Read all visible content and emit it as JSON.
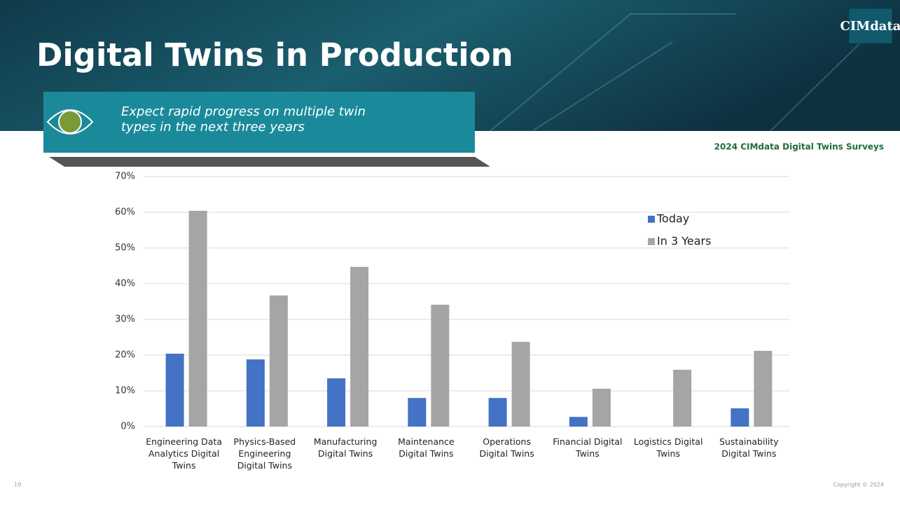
{
  "slide": {
    "title": "Digital Twins in Production",
    "subtitle": "Expect rapid progress on multiple twin types in the next three years",
    "source": "2024 CIMdata Digital Twins Surveys",
    "logo": "CIMdata",
    "page_number": "19",
    "copyright": "Copyright © 2024"
  },
  "chart_data": {
    "type": "bar",
    "categories": [
      "Engineering Data Analytics Digital Twins",
      "Physics-Based Engineering Digital Twins",
      "Manufacturing Digital Twins",
      "Maintenance Digital Twins",
      "Operations Digital Twins",
      "Financial Digital Twins",
      "Logistics Digital Twins",
      "Sustainability Digital Twins"
    ],
    "series": [
      {
        "name": "Today",
        "color": "#4472c4",
        "values": [
          20.4,
          18.8,
          13.5,
          8.0,
          8.0,
          2.7,
          0,
          5.1
        ]
      },
      {
        "name": "In 3 Years",
        "color": "#a5a5a5",
        "values": [
          60.4,
          36.7,
          44.7,
          34.1,
          23.7,
          10.6,
          15.9,
          21.2
        ]
      }
    ],
    "ylim": [
      0,
      70
    ],
    "yticks": [
      {
        "value": 0,
        "label": "0%"
      },
      {
        "value": 10,
        "label": "10%"
      },
      {
        "value": 20,
        "label": "20%"
      },
      {
        "value": 30,
        "label": "30%"
      },
      {
        "value": 40,
        "label": "40%"
      },
      {
        "value": 50,
        "label": "50%"
      },
      {
        "value": 60,
        "label": "60%"
      },
      {
        "value": 70,
        "label": "70%"
      }
    ],
    "grid": true,
    "legend": "upper right"
  }
}
